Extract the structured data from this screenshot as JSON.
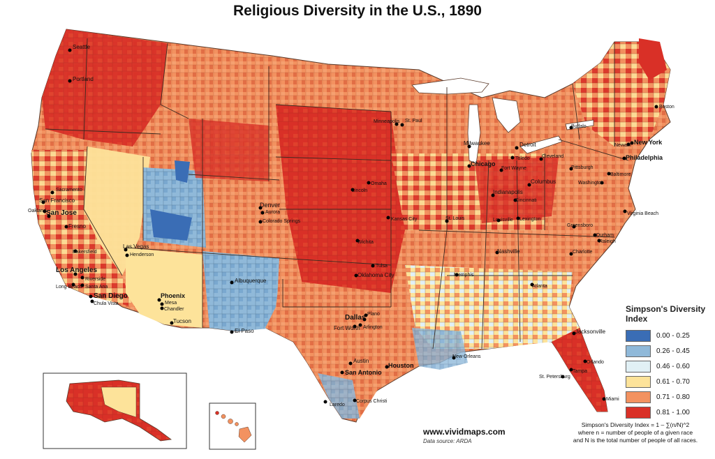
{
  "title": "Religious Diversity in the U.S., 1890",
  "legend": {
    "title_line1": "Simpson's Diversity",
    "title_line2": "Index",
    "items": [
      {
        "label": "0.00 - 0.25",
        "color": "#3a6db5"
      },
      {
        "label": "0.26 - 0.45",
        "color": "#90b9d9"
      },
      {
        "label": "0.46 - 0.60",
        "color": "#e1f0f5"
      },
      {
        "label": "0.61 - 0.70",
        "color": "#fde39a"
      },
      {
        "label": "0.71 - 0.80",
        "color": "#f39260"
      },
      {
        "label": "0.81 - 1.00",
        "color": "#d93027"
      }
    ]
  },
  "website": "www.vividmaps.com",
  "source": "Data source: ARDA",
  "formula": {
    "line1": "Simpson's Diversity Index = 1 – ∑(n/N)^2",
    "line2": "where n = number of people of a given race",
    "line3": "and N is the total number of people of all races."
  },
  "cities": {
    "seattle": "Seattle",
    "portland": "Portland",
    "sacramento": "Sacramento",
    "san_francisco": "San Francisco",
    "oakland": "Oakland",
    "san_jose": "San Jose",
    "fresno": "Fresno",
    "bakersfield": "Bakersfield",
    "las_vegas": "Las Vegas",
    "henderson": "Henderson",
    "los_angeles": "Los Angeles",
    "riverside": "Riverside",
    "long_beach": "Long Beach",
    "santa_ana": "Santa Ana",
    "san_diego": "San Diego",
    "chula_vista": "Chula Vista",
    "phoenix": "Phoenix",
    "mesa": "Mesa",
    "chandler": "Chandler",
    "tucson": "Tucson",
    "albuquerque": "Albuquerque",
    "el_paso": "El Paso",
    "denver": "Denver",
    "aurora": "Aurora",
    "colorado_springs": "Colorado Springs",
    "minneapolis": "Minneapolis",
    "st_paul": "St. Paul",
    "milwaukee": "Milwaukee",
    "detroit": "Detroit",
    "toledo": "Toledo",
    "chicago": "Chicago",
    "omaha": "Omaha",
    "lincoln": "Lincoln",
    "kansas_city": "Kansas City",
    "wichita": "Wichita",
    "st_louis": "St. Louis",
    "fort_wayne": "Fort Wayne",
    "cleveland": "Cleveland",
    "indianapolis": "Indianapolis",
    "columbus": "Columbus",
    "cincinnati": "Cincinnati",
    "louisville": "Louisville",
    "lexington": "Lexington",
    "pittsburgh": "Pittsburgh",
    "buffalo": "Buffalo",
    "boston": "Boston",
    "newark": "Newark",
    "new_york": "New York",
    "philadelphia": "Philadelphia",
    "baltimore": "Baltimore",
    "washington": "Washington",
    "virginia_beach": "Virginia Beach",
    "greensboro": "Greensboro",
    "durham": "Durham",
    "raleigh": "Raleigh",
    "charlotte": "Charlotte",
    "nashville": "Nashville",
    "memphis": "Memphis",
    "atlanta": "Atlanta",
    "tulsa": "Tulsa",
    "oklahoma_city": "Oklahoma City",
    "dallas": "Dallas",
    "plano": "Plano",
    "fort_worth": "Fort Worth",
    "arlington": "Arlington",
    "austin": "Austin",
    "san_antonio": "San Antonio",
    "houston": "Houston",
    "new_orleans": "New Orleans",
    "laredo": "Laredo",
    "corpus_christi": "Corpus Christi",
    "jacksonville": "Jacksonville",
    "orlando": "Orlando",
    "tampa": "Tampa",
    "st_petersburg": "St. Petersburg",
    "miami": "Miami"
  }
}
